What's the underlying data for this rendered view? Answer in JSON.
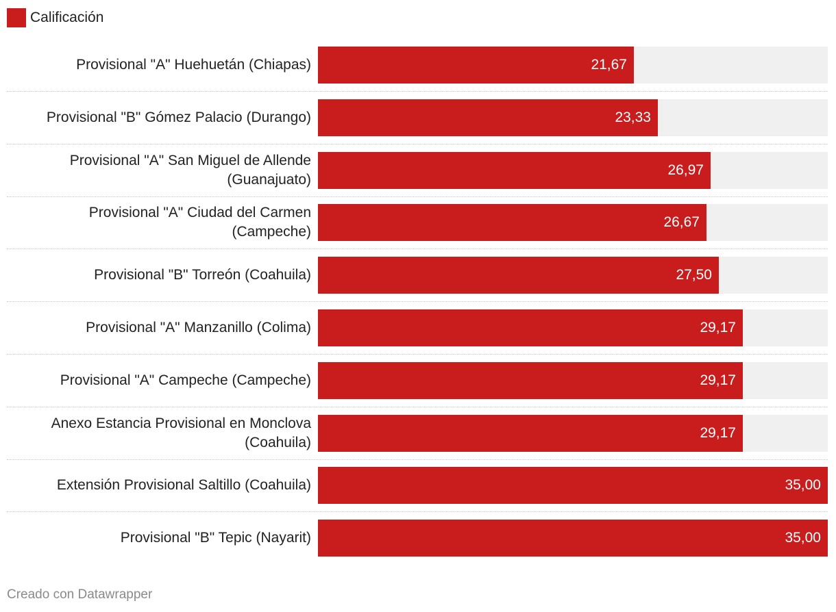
{
  "legend": {
    "label": "Calificación",
    "color": "#c91d1d"
  },
  "footer": {
    "credit": "Creado con Datawrapper"
  },
  "colors": {
    "bar": "#c91d1d",
    "track": "#f0f0f0"
  },
  "chart_data": {
    "type": "bar",
    "orientation": "horizontal",
    "title": "",
    "series": [
      {
        "name": "Calificación"
      }
    ],
    "xlim": [
      0,
      35
    ],
    "grid": false,
    "legend_position": "top-left",
    "categories": [
      "Provisional \"A\" Huehuetán (Chiapas)",
      "Provisional \"B\" Gómez Palacio (Durango)",
      "Provisional \"A\" San Miguel de Allende (Guanajuato)",
      "Provisional \"A\" Ciudad del Carmen (Campeche)",
      "Provisional \"B\" Torreón (Coahuila)",
      "Provisional \"A\" Manzanillo (Colima)",
      "Provisional \"A\" Campeche (Campeche)",
      "Anexo Estancia Provisional en Monclova (Coahuila)",
      "Extensión Provisional Saltillo (Coahuila)",
      "Provisional \"B\" Tepic (Nayarit)"
    ],
    "values": [
      21.67,
      23.33,
      26.97,
      26.67,
      27.5,
      29.17,
      29.17,
      29.17,
      35.0,
      35.0
    ],
    "value_labels": [
      "21,67",
      "23,33",
      "26,97",
      "26,67",
      "27,50",
      "29,17",
      "29,17",
      "29,17",
      "35,00",
      "35,00"
    ]
  }
}
